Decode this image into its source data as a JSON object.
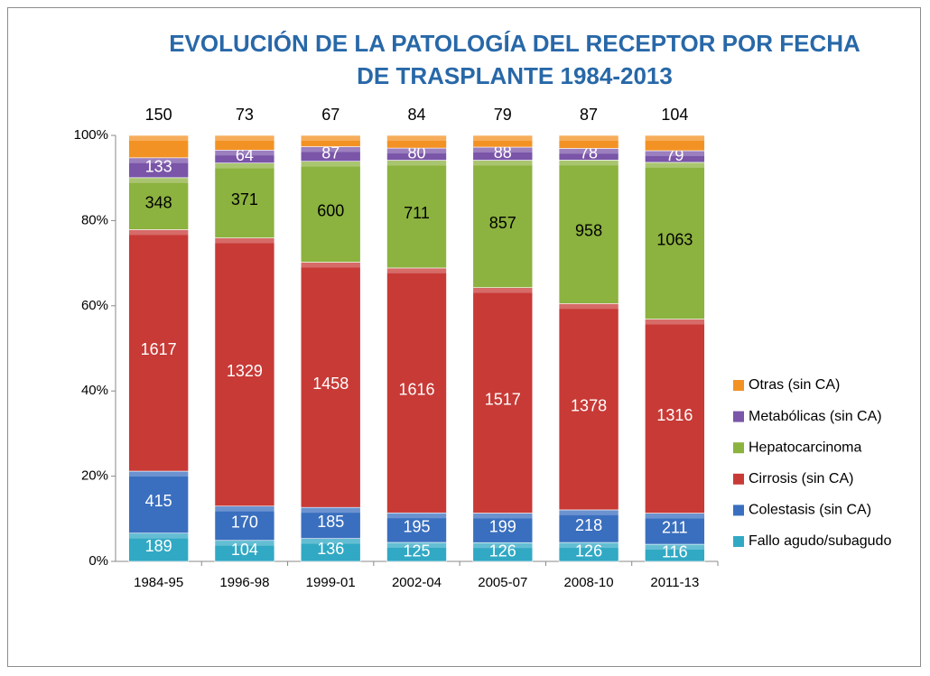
{
  "chart_data": {
    "type": "bar",
    "stacking": "percent",
    "title": "EVOLUCIÓN DE LA PATOLOGÍA DEL RECEPTOR POR FECHA DE TRASPLANTE 1984-2013",
    "categories": [
      "1984-95",
      "1996-98",
      "1999-01",
      "2002-04",
      "2005-07",
      "2008-10",
      "2011-13"
    ],
    "series": [
      {
        "name": "Fallo agudo/subagudo",
        "color": "#31a9c4",
        "values": [
          189,
          104,
          136,
          125,
          126,
          126,
          116
        ]
      },
      {
        "name": "Colestasis (sin CA)",
        "color": "#3a6fbf",
        "values": [
          415,
          170,
          185,
          195,
          199,
          218,
          211
        ]
      },
      {
        "name": "Cirrosis (sin CA)",
        "color": "#c83a36",
        "values": [
          1617,
          1329,
          1458,
          1616,
          1517,
          1378,
          1316
        ]
      },
      {
        "name": "Hepatocarcinoma",
        "color": "#8cb23f",
        "values": [
          348,
          371,
          600,
          711,
          857,
          958,
          1063
        ]
      },
      {
        "name": "Metabólicas (sin CA)",
        "color": "#7a55a8",
        "values": [
          133,
          64,
          87,
          80,
          88,
          78,
          79
        ]
      },
      {
        "name": "Otras (sin CA)",
        "color": "#f39224",
        "values": [
          150,
          73,
          67,
          84,
          79,
          87,
          104
        ]
      }
    ],
    "ylim": [
      0,
      100
    ],
    "yticks": [
      {
        "value": 0,
        "label": "0%"
      },
      {
        "value": 20,
        "label": "20%"
      },
      {
        "value": 40,
        "label": "40%"
      },
      {
        "value": 60,
        "label": "60%"
      },
      {
        "value": 80,
        "label": "80%"
      },
      {
        "value": 100,
        "label": "100%"
      }
    ],
    "grid": false,
    "legend": "right"
  }
}
